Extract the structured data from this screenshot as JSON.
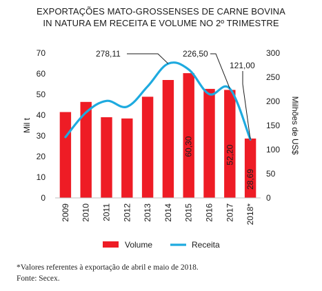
{
  "chart_data": {
    "type": "bar",
    "title_lines": [
      "EXPORTAÇÕES MATO-GROSSENSES DE CARNE BOVINA",
      "IN NATURA EM RECEITA E VOLUME NO 2º TRIMESTRE"
    ],
    "categories": [
      "2009",
      "2010",
      "2011",
      "2012",
      "2013",
      "2014",
      "2015",
      "2016",
      "2017",
      "2018*"
    ],
    "series": [
      {
        "name": "Volume",
        "type": "bar",
        "axis": "left",
        "color": "#ee1c25",
        "values": [
          41.5,
          46.4,
          39.0,
          38.4,
          48.9,
          57.0,
          60.3,
          52.7,
          52.2,
          28.69
        ]
      },
      {
        "name": "Receita",
        "type": "line",
        "axis": "right",
        "color": "#1eaadf",
        "values": [
          126,
          177,
          201,
          189,
          231,
          278.11,
          266,
          215,
          226.5,
          121.0
        ]
      }
    ],
    "bar_labels": [
      {
        "index": 6,
        "text": "60,30"
      },
      {
        "index": 8,
        "text": "52,20"
      },
      {
        "index": 9,
        "text": "28,69"
      }
    ],
    "line_labels": [
      {
        "index": 5,
        "text": "278,11"
      },
      {
        "index": 8,
        "text": "226,50"
      },
      {
        "index": 9,
        "text": "121,00"
      }
    ],
    "ylabel_left": "Mil t",
    "ylabel_right": "Milhões de US$",
    "ylim_left": [
      0,
      70
    ],
    "yticks_left": [
      0,
      10,
      20,
      30,
      40,
      50,
      60,
      70
    ],
    "ylim_right": [
      0,
      300
    ],
    "yticks_right": [
      0,
      50,
      100,
      150,
      200,
      250,
      300
    ],
    "grid": false,
    "legend_position": "bottom"
  },
  "footnote": "*Valores referentes à exportação de abril e maio de 2018.",
  "source": "Fonte: Secex."
}
